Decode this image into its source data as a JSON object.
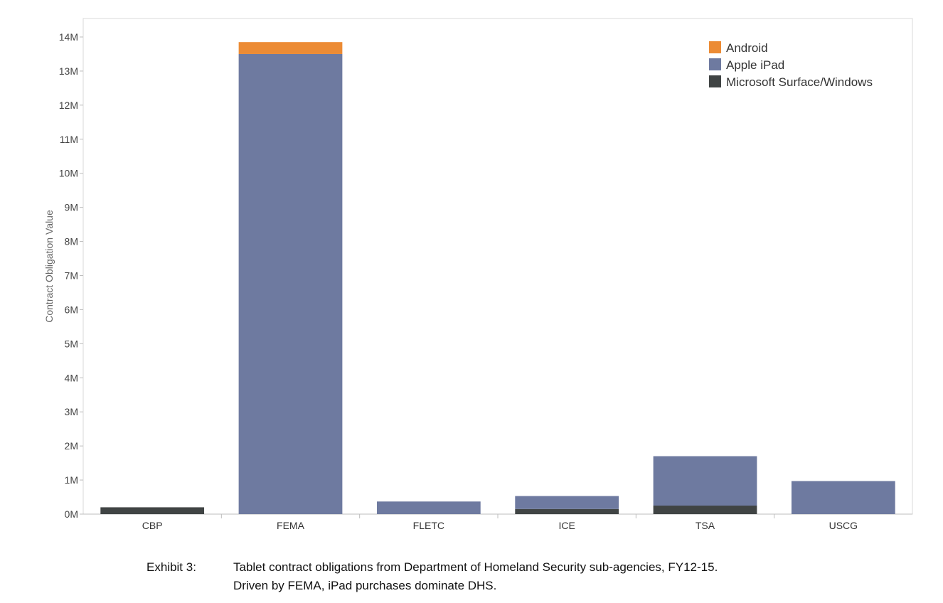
{
  "chart_data": {
    "type": "bar",
    "stacked": true,
    "categories": [
      "CBP",
      "FEMA",
      "FLETC",
      "ICE",
      "TSA",
      "USCG"
    ],
    "series": [
      {
        "name": "Microsoft Surface/Windows",
        "color": "#404444",
        "values": [
          0.2,
          0,
          0,
          0.15,
          0.25,
          0
        ]
      },
      {
        "name": "Apple iPad",
        "color": "#6e7aa0",
        "values": [
          0,
          13.5,
          0.37,
          0.38,
          1.45,
          0.97
        ]
      },
      {
        "name": "Android",
        "color": "#ec8b34",
        "values": [
          0,
          0.35,
          0,
          0,
          0,
          0
        ]
      }
    ],
    "legend_order": [
      "Android",
      "Apple iPad",
      "Microsoft Surface/Windows"
    ],
    "legend_position": "top-right",
    "title": "",
    "xlabel": "",
    "ylabel": "Contract Obligation Value",
    "ylim": [
      0,
      14
    ],
    "yticks": [
      0,
      1,
      2,
      3,
      4,
      5,
      6,
      7,
      8,
      9,
      10,
      11,
      12,
      13,
      14
    ],
    "ytick_labels": [
      "0M",
      "1M",
      "2M",
      "3M",
      "4M",
      "5M",
      "6M",
      "7M",
      "8M",
      "9M",
      "10M",
      "11M",
      "12M",
      "13M",
      "14M"
    ],
    "grid": false
  },
  "caption": {
    "label": "Exhibit 3:",
    "line1": "Tablet contract obligations from Department of Homeland Security sub-agencies, FY12-15.",
    "line2": "Driven by FEMA, iPad purchases dominate DHS."
  }
}
